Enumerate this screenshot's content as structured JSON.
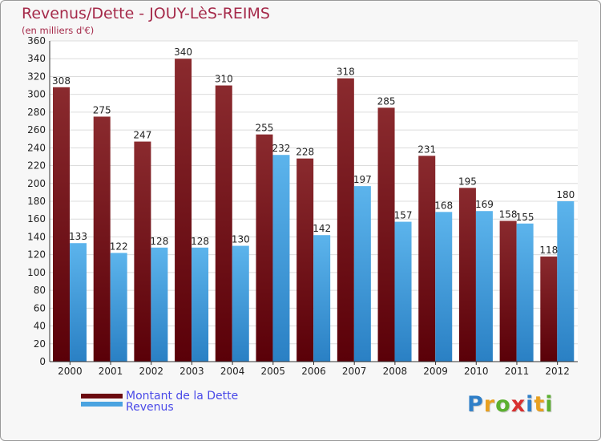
{
  "chart_data": {
    "type": "bar",
    "title": "Revenus/Dette - JOUY-LèS-REIMS",
    "subtitle": "(en milliers d'€)",
    "categories": [
      "2000",
      "2001",
      "2002",
      "2003",
      "2004",
      "2005",
      "2006",
      "2007",
      "2008",
      "2009",
      "2010",
      "2011",
      "2012"
    ],
    "series": [
      {
        "name": "Montant de la Dette",
        "color": "#7a0a14",
        "values": [
          308,
          275,
          247,
          340,
          310,
          255,
          228,
          318,
          285,
          231,
          195,
          158,
          118
        ]
      },
      {
        "name": "Revenus",
        "color": "#3a9ad8",
        "values": [
          133,
          122,
          128,
          128,
          130,
          232,
          142,
          197,
          157,
          168,
          169,
          155,
          180
        ]
      }
    ],
    "yticks": [
      0,
      20,
      40,
      60,
      80,
      100,
      120,
      140,
      160,
      180,
      200,
      220,
      240,
      260,
      280,
      300,
      320,
      340,
      360
    ],
    "ylim": [
      0,
      360
    ],
    "grid": true,
    "xlabel": "",
    "ylabel": ""
  },
  "legend": {
    "items": [
      {
        "label": "Montant de la Dette",
        "color": "#6b0a10"
      },
      {
        "label": "Revenus",
        "color": "#4aa3e0"
      }
    ]
  },
  "logo": {
    "letters": [
      {
        "char": "P",
        "color": "#2f7fc8"
      },
      {
        "char": "r",
        "color": "#e8a020"
      },
      {
        "char": "o",
        "color": "#5cb030"
      },
      {
        "char": "x",
        "color": "#d83030"
      },
      {
        "char": "i",
        "color": "#2f7fc8"
      },
      {
        "char": "t",
        "color": "#e8a020"
      },
      {
        "char": "i",
        "color": "#5cb030"
      }
    ]
  }
}
